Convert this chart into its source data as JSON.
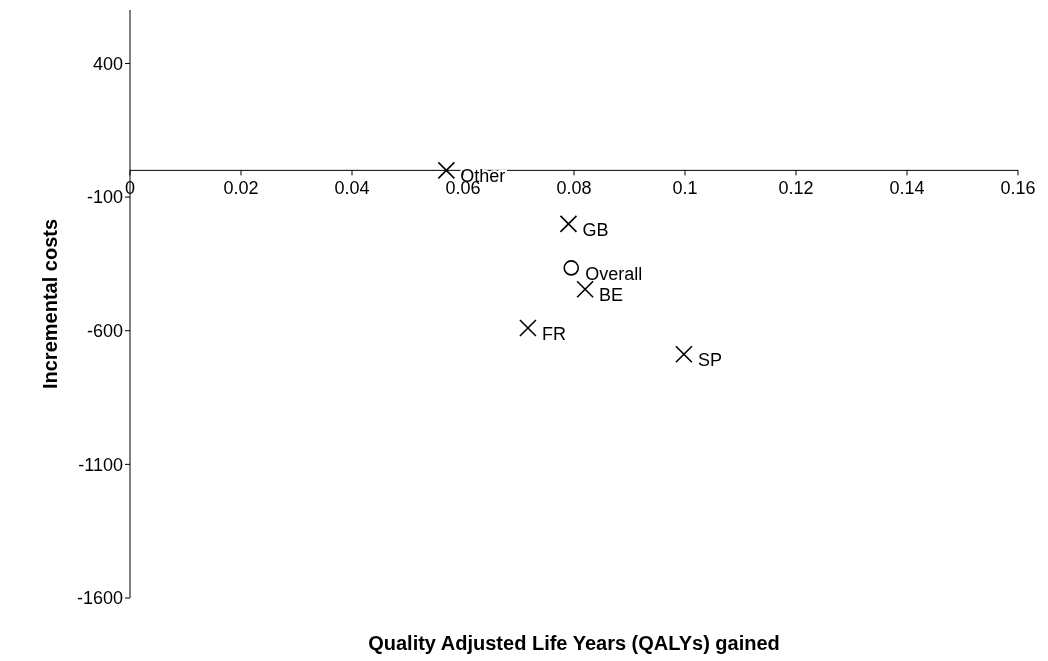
{
  "chart_data": {
    "type": "scatter",
    "xlabel": "Quality Adjusted Life Years (QALYs) gained",
    "ylabel": "Incremental costs",
    "xlim": [
      0,
      0.16
    ],
    "xticks": [
      0,
      0.02,
      0.04,
      0.06,
      0.08,
      0.1,
      0.12,
      0.14,
      0.16
    ],
    "ylim": [
      -1600,
      600
    ],
    "yticks": [
      -1600,
      -1100,
      -600,
      -100,
      400
    ],
    "series": [
      {
        "name": "Other",
        "color": "#000000",
        "marker": "cross",
        "x": [
          0.057
        ],
        "values": [
          0
        ]
      },
      {
        "name": "GB",
        "color": "#000000",
        "marker": "cross",
        "x": [
          0.079
        ],
        "values": [
          -200
        ]
      },
      {
        "name": "Overall",
        "color": "#000000",
        "marker": "circle",
        "x": [
          0.0795
        ],
        "values": [
          -365
        ]
      },
      {
        "name": "BE",
        "color": "#000000",
        "marker": "cross",
        "x": [
          0.082
        ],
        "values": [
          -445
        ]
      },
      {
        "name": "FR",
        "color": "#000000",
        "marker": "cross",
        "x": [
          0.0717
        ],
        "values": [
          -590
        ]
      },
      {
        "name": "SP",
        "color": "#000000",
        "marker": "cross",
        "x": [
          0.0998
        ],
        "values": [
          -688
        ]
      }
    ]
  }
}
